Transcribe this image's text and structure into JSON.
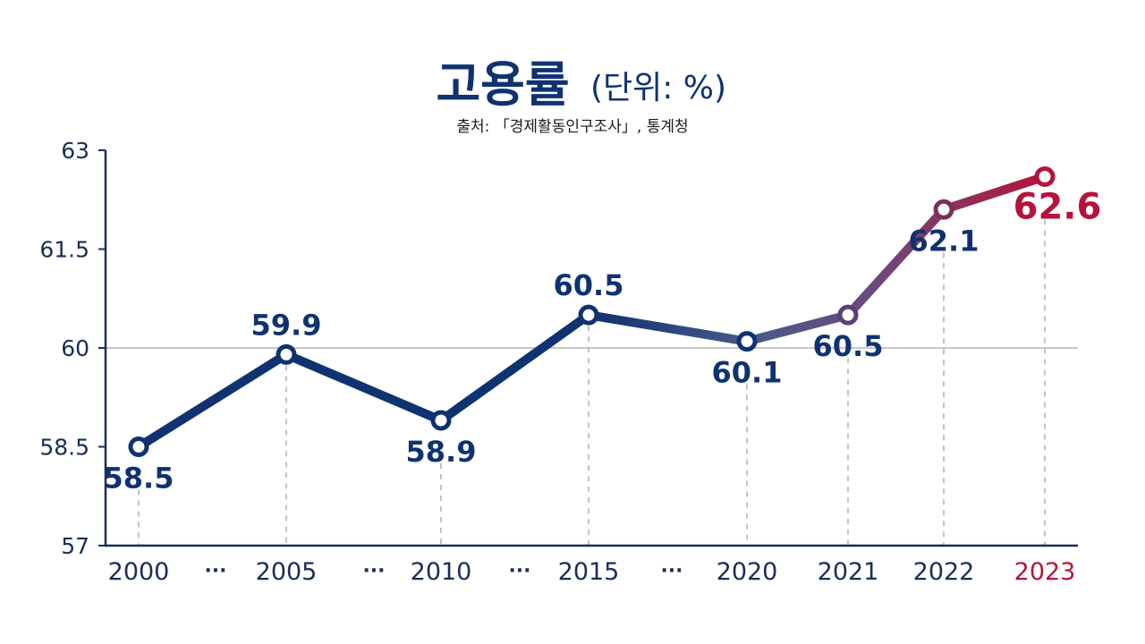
{
  "title": "고용률",
  "title_unit": "(단위: %)",
  "source": "출처: 「경제활동인구조사」, 통계청",
  "colors": {
    "navy": "#0f3270",
    "crimson": "#b4143c",
    "axis": "#1a2e55",
    "grid": "#b5b5b5",
    "guide": "#a8a8a8"
  },
  "chart_data": {
    "type": "line",
    "title": "고용률",
    "unit": "(단위: %)",
    "source": "출처: 「경제활동인구조사」, 통계청",
    "categories": [
      "2000",
      "2005",
      "2010",
      "2015",
      "2020",
      "2021",
      "2022",
      "2023"
    ],
    "values": [
      58.5,
      59.9,
      58.9,
      60.5,
      60.1,
      60.5,
      62.1,
      62.6
    ],
    "value_labels": [
      "58.5",
      "59.9",
      "58.9",
      "60.5",
      "60.1",
      "60.5",
      "62.1",
      "62.6"
    ],
    "ellipsis_label": "···",
    "y_ticks": [
      "57",
      "58.5",
      "60",
      "61.5",
      "63"
    ],
    "ylim": [
      57,
      63
    ],
    "reference_line": 60,
    "highlight_category": "2023",
    "grid": false
  }
}
